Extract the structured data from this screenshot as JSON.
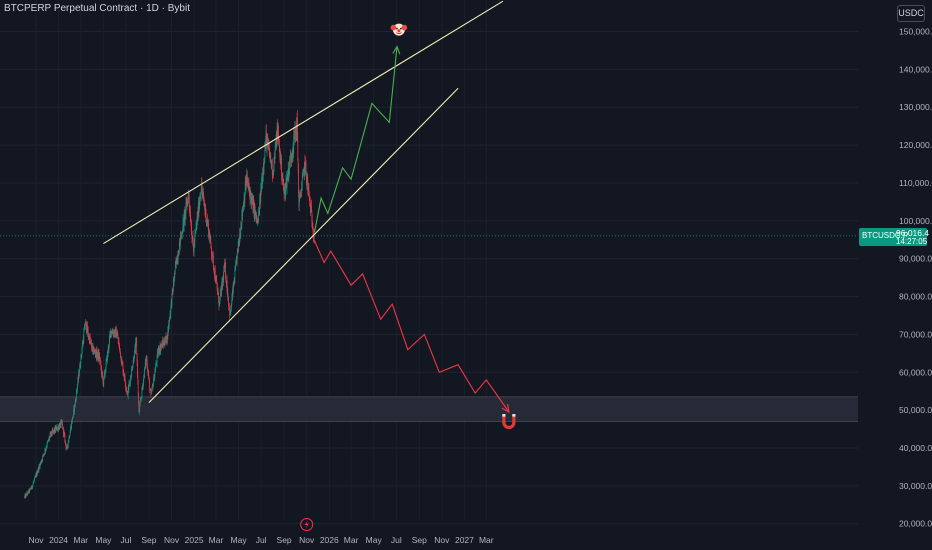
{
  "header": {
    "title": "BTCPERP Perpetual Contract · 1D · Bybit",
    "currency": "USDC"
  },
  "last_price": {
    "symbol": "BTCUSDC.P",
    "value": "96,016.4",
    "countdown": "14:27:05"
  },
  "colors": {
    "background": "#131722",
    "up": "#089981",
    "down": "#f23645",
    "trendline": "#f0efb0",
    "bull_path": "#4caf50",
    "bear_path": "#f23645",
    "zone": "#2a2e39"
  },
  "icons": [
    "clown-face-icon",
    "magnet-icon",
    "lightning-icon"
  ],
  "chart_data": {
    "type": "candlestick",
    "symbol": "BTCPERP",
    "interval": "1D",
    "y_axis": {
      "ticks": [
        20000,
        30000,
        40000,
        50000,
        60000,
        70000,
        80000,
        90000,
        100000,
        110000,
        120000,
        130000,
        140000,
        150000
      ],
      "tick_labels": [
        "20,000.0",
        "30,000.0",
        "40,000.0",
        "50,000.0",
        "60,000.0",
        "70,000.0",
        "80,000.0",
        "90,000.0",
        "100,000.0",
        "110,000.0",
        "120,000.0",
        "130,000.0",
        "140,000.0",
        "150,000.0"
      ],
      "range": [
        18000,
        154000
      ]
    },
    "x_axis": {
      "tick_labels": [
        "Nov",
        "2024",
        "Mar",
        "May",
        "Jul",
        "Sep",
        "Nov",
        "2025",
        "Mar",
        "May",
        "Jul",
        "Sep",
        "Nov",
        "2026",
        "Mar",
        "May",
        "Jul",
        "Sep",
        "Nov",
        "2027",
        "Mar"
      ],
      "tick_dates": [
        "2023-11-01",
        "2024-01-01",
        "2024-03-01",
        "2024-05-01",
        "2024-07-01",
        "2024-09-01",
        "2024-11-01",
        "2025-01-01",
        "2025-03-01",
        "2025-05-01",
        "2025-07-01",
        "2025-09-01",
        "2025-11-01",
        "2026-01-01",
        "2026-03-01",
        "2026-05-01",
        "2026-07-01",
        "2026-09-01",
        "2026-11-01",
        "2027-01-01",
        "2027-03-01"
      ]
    },
    "price_path": [
      [
        "2023-10-01",
        27000
      ],
      [
        "2023-10-20",
        29500
      ],
      [
        "2023-11-15",
        36500
      ],
      [
        "2023-12-10",
        43500
      ],
      [
        "2024-01-10",
        46500
      ],
      [
        "2024-01-23",
        39500
      ],
      [
        "2024-02-15",
        52000
      ],
      [
        "2024-03-13",
        73000
      ],
      [
        "2024-04-01",
        66000
      ],
      [
        "2024-04-20",
        64000
      ],
      [
        "2024-05-01",
        57000
      ],
      [
        "2024-05-21",
        71000
      ],
      [
        "2024-06-07",
        70000
      ],
      [
        "2024-07-05",
        54000
      ],
      [
        "2024-07-29",
        68000
      ],
      [
        "2024-08-05",
        49000
      ],
      [
        "2024-08-25",
        64000
      ],
      [
        "2024-09-06",
        53500
      ],
      [
        "2024-09-27",
        66000
      ],
      [
        "2024-10-20",
        69000
      ],
      [
        "2024-11-12",
        88000
      ],
      [
        "2024-12-17",
        107000
      ],
      [
        "2024-12-30",
        92000
      ],
      [
        "2025-01-20",
        109000
      ],
      [
        "2025-02-10",
        97000
      ],
      [
        "2025-03-10",
        78000
      ],
      [
        "2025-03-25",
        88000
      ],
      [
        "2025-04-08",
        75000
      ],
      [
        "2025-05-22",
        111000
      ],
      [
        "2025-06-22",
        99000
      ],
      [
        "2025-07-14",
        122000
      ],
      [
        "2025-08-02",
        113000
      ],
      [
        "2025-08-14",
        124000
      ],
      [
        "2025-09-01",
        107000
      ],
      [
        "2025-09-20",
        117000
      ],
      [
        "2025-10-06",
        126000
      ],
      [
        "2025-10-11",
        104000
      ],
      [
        "2025-10-27",
        115000
      ],
      [
        "2025-11-21",
        96016
      ]
    ],
    "last_price": 96016.4,
    "support_zone": [
      47000,
      53500
    ],
    "trendlines": [
      {
        "role": "upper",
        "from": [
          "2024-05-01",
          94000
        ],
        "to": [
          "2027-04-15",
          158000
        ]
      },
      {
        "role": "lower",
        "from": [
          "2024-09-01",
          52000
        ],
        "to": [
          "2026-12-15",
          135000
        ]
      }
    ],
    "projections": [
      {
        "role": "bullish",
        "points": [
          [
            "2025-11-22",
            97000
          ],
          [
            "2025-12-10",
            106000
          ],
          [
            "2025-12-28",
            102000
          ],
          [
            "2026-02-06",
            114000
          ],
          [
            "2026-03-01",
            111000
          ],
          [
            "2026-04-26",
            131000
          ],
          [
            "2026-06-12",
            126000
          ],
          [
            "2026-07-03",
            146000
          ]
        ]
      },
      {
        "role": "bearish",
        "points": [
          [
            "2025-11-21",
            95000
          ],
          [
            "2025-12-18",
            89000
          ],
          [
            "2026-01-05",
            92000
          ],
          [
            "2026-03-01",
            83000
          ],
          [
            "2026-04-01",
            86000
          ],
          [
            "2026-05-20",
            74000
          ],
          [
            "2026-06-20",
            78000
          ],
          [
            "2026-08-01",
            66000
          ],
          [
            "2026-09-15",
            70000
          ],
          [
            "2026-10-25",
            60000
          ],
          [
            "2026-12-15",
            62000
          ],
          [
            "2027-01-30",
            54500
          ],
          [
            "2027-03-01",
            58000
          ],
          [
            "2027-05-01",
            49500
          ]
        ]
      }
    ],
    "annotations": [
      {
        "icon": "clown-face-icon",
        "at": [
          "2026-07-08",
          150500
        ]
      },
      {
        "icon": "magnet-icon",
        "at": [
          "2027-05-01",
          47000
        ]
      },
      {
        "icon": "lightning-icon",
        "at": [
          "2025-11-01",
          19800
        ]
      }
    ]
  }
}
